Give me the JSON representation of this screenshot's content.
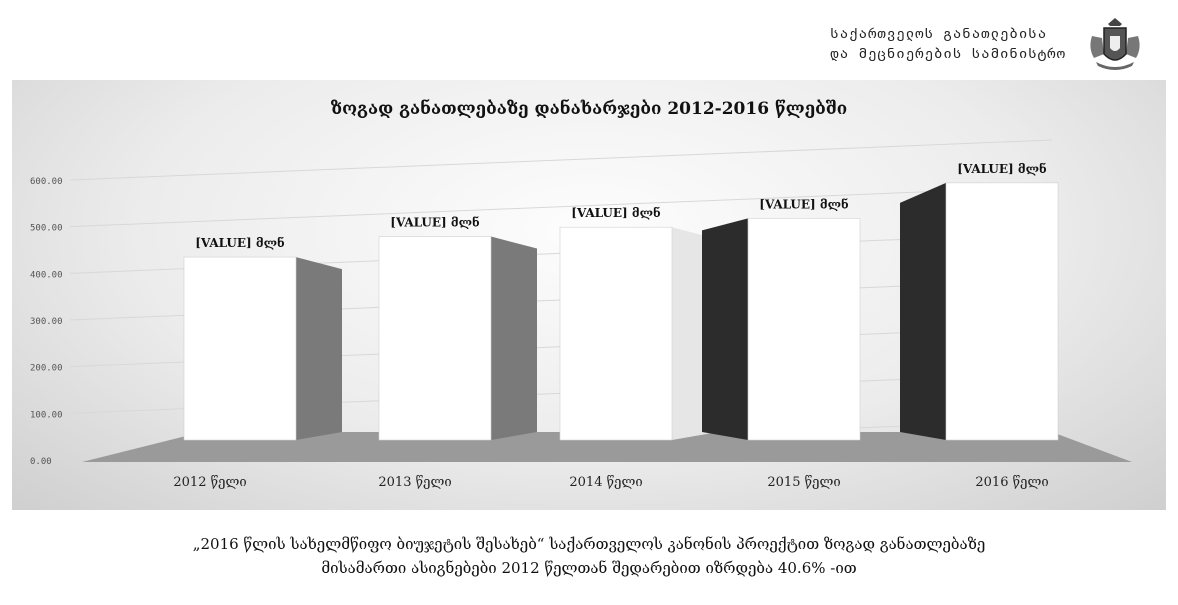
{
  "header": {
    "ministry_line1": "საქართველოს განათლებისა",
    "ministry_line2": "და მეცნიერების სამინისტრო",
    "emblem_icon": "coat-of-arms-icon"
  },
  "caption": {
    "line1": "„2016 წლის სახელმწიფო ბიუჯეტის შესახებ“ საქართველოს კანონის პროექტით ზოგად განათლებაზე",
    "line2": "მისამართი ასიგნებები 2012 წელთან შედარებით იზრდება 40.6% -ით"
  },
  "chart_data": {
    "type": "bar",
    "title": "ზოგად განათლებაზე დანახარჯები 2012-2016 წლებში",
    "categories": [
      "2012 წელი",
      "2013 წელი",
      "2014 წელი",
      "2015 წელი",
      "2016 წელი"
    ],
    "values": [
      392,
      436,
      456,
      475,
      551
    ],
    "data_labels": [
      "[VALUE] მლნ",
      "[VALUE] მლნ",
      "[VALUE] მლნ",
      "[VALUE] მლნ",
      "[VALUE] მლნ"
    ],
    "yticks": [
      "0.00",
      "100.00",
      "200.00",
      "300.00",
      "400.00",
      "500.00",
      "600.00"
    ],
    "ylim": [
      0,
      600
    ],
    "grid": true,
    "legend": "none",
    "colors": {
      "bar_front": "#ffffff",
      "bar_side_light": "#7a7a7a",
      "bar_side_dark": "#2c2c2c",
      "floor": "#9a9a9a",
      "grid": "#d8d8d8"
    }
  }
}
